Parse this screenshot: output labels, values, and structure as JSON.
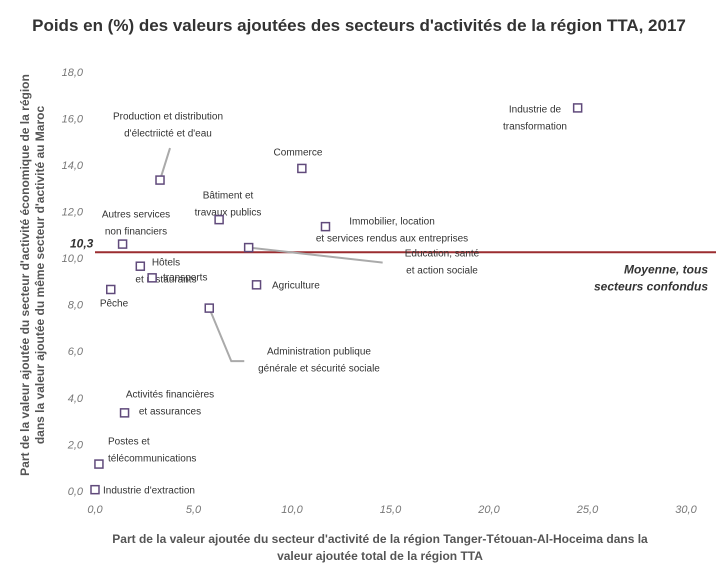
{
  "chart_data": {
    "type": "scatter",
    "title": "Poids en (%) des valeurs ajoutées des secteurs d'activités de la région TTA, 2017",
    "x_label": "Part de la valeur ajoutée du secteur d'activité de la région Tanger-Tétouan-Al-Hoceima dans la valeur ajoutée total de la région TTA",
    "y_label": "Part de la valeur ajoutée du secteur d'activité économique de la région dans la valeur ajoutée du même secteur d'activité au Maroc",
    "xlim": [
      0,
      30
    ],
    "xticks": [
      {
        "value": 0,
        "label": "0,0"
      },
      {
        "value": 5,
        "label": "5,0"
      },
      {
        "value": 10,
        "label": "10,0"
      },
      {
        "value": 15,
        "label": "15,0"
      },
      {
        "value": 20,
        "label": "20,0"
      },
      {
        "value": 25,
        "label": "25,0"
      },
      {
        "value": 30,
        "label": "30,0"
      }
    ],
    "ylim": [
      0,
      18
    ],
    "yticks": [
      {
        "value": 0,
        "label": "0,0"
      },
      {
        "value": 2,
        "label": "2,0"
      },
      {
        "value": 4,
        "label": "4,0"
      },
      {
        "value": 6,
        "label": "6,0"
      },
      {
        "value": 8,
        "label": "8,0"
      },
      {
        "value": 10,
        "label": "10,0"
      },
      {
        "value": 12,
        "label": "12,0"
      },
      {
        "value": 14,
        "label": "14,0"
      },
      {
        "value": 16,
        "label": "16,0"
      },
      {
        "value": 18,
        "label": "18,0"
      }
    ],
    "color": "#604a7b",
    "labels": [
      [
        "Industrie de",
        "transformation"
      ],
      [
        "Production et distribution",
        "d'électriicté et d'eau"
      ],
      [
        "Commerce"
      ],
      [
        "Bâtiment et",
        "travaux publics"
      ],
      [
        "Immobilier, location",
        "et services rendus aux entreprises"
      ],
      [
        "Autres services",
        "non financiers"
      ],
      [
        "Education, santé",
        "et action sociale"
      ],
      [
        "Hôtels",
        "et restaurants"
      ],
      [
        "transports"
      ],
      [
        "Pêche"
      ],
      [
        "Agriculture"
      ],
      [
        "Administration publique",
        "générale et sécurité sociale"
      ],
      [
        "Activités financières",
        "et assurances"
      ],
      [
        "Postes et",
        "télécommunications"
      ],
      [
        "Industrie d'extraction"
      ]
    ],
    "x": [
      24.5,
      3.3,
      10.5,
      6.3,
      11.7,
      1.4,
      7.8,
      2.3,
      2.9,
      0.8,
      8.2,
      5.8,
      1.5,
      0.2,
      0.0
    ],
    "values": [
      16.5,
      13.4,
      13.9,
      11.7,
      11.4,
      10.65,
      10.5,
      9.7,
      9.2,
      8.7,
      8.9,
      7.9,
      3.4,
      1.2,
      0.1
    ],
    "mean": {
      "value": 10.3,
      "value_label": "10,3",
      "label": [
        "Moyenne, tous",
        "secteurs confondus"
      ],
      "color": "#9b2d30"
    }
  }
}
